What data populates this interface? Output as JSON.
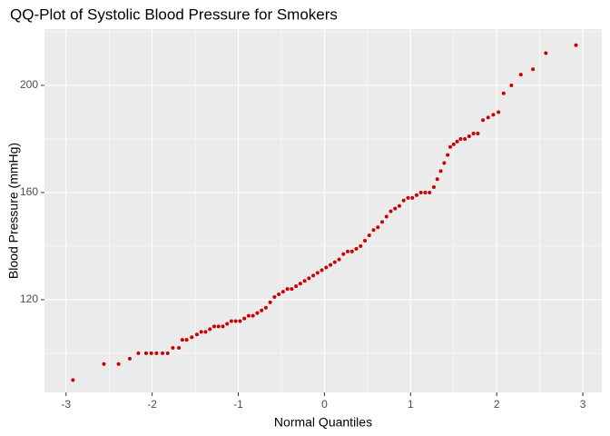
{
  "chart_data": {
    "type": "scatter",
    "title": "QQ-Plot of Systolic Blood Pressure for Smokers",
    "x_label": "Normal Quantiles",
    "y_label": "Blood Pressure (mmHg)",
    "color": "#cc0000",
    "grid": true,
    "xlim": [
      -3.25,
      3.22
    ],
    "ylim": [
      85.4,
      221
    ],
    "xticks": [
      -3,
      -2,
      -1,
      0,
      1,
      2,
      3
    ],
    "yticks": [
      120,
      160,
      200
    ],
    "x": [
      -2.92,
      -2.56,
      -2.39,
      -2.26,
      -2.16,
      -2.07,
      -2.01,
      -1.95,
      -1.88,
      -1.82,
      -1.76,
      -1.69,
      -1.65,
      -1.6,
      -1.54,
      -1.48,
      -1.43,
      -1.38,
      -1.33,
      -1.28,
      -1.23,
      -1.18,
      -1.13,
      -1.08,
      -1.03,
      -0.98,
      -0.93,
      -0.88,
      -0.83,
      -0.78,
      -0.73,
      -0.68,
      -0.63,
      -0.58,
      -0.53,
      -0.48,
      -0.43,
      -0.38,
      -0.33,
      -0.28,
      -0.23,
      -0.18,
      -0.13,
      -0.08,
      -0.03,
      0.02,
      0.07,
      0.12,
      0.17,
      0.22,
      0.27,
      0.32,
      0.37,
      0.42,
      0.47,
      0.52,
      0.57,
      0.62,
      0.67,
      0.72,
      0.77,
      0.82,
      0.87,
      0.92,
      0.97,
      1.02,
      1.07,
      1.12,
      1.17,
      1.22,
      1.27,
      1.31,
      1.35,
      1.39,
      1.43,
      1.46,
      1.5,
      1.54,
      1.58,
      1.63,
      1.68,
      1.73,
      1.78,
      1.84,
      1.9,
      1.96,
      2.02,
      2.08,
      2.17,
      2.28,
      2.42,
      2.57,
      2.92
    ],
    "values": [
      90,
      96,
      96,
      98,
      100,
      100,
      100,
      100,
      100,
      100,
      102,
      102,
      105,
      105,
      106,
      107,
      108,
      108,
      109,
      110,
      110,
      110,
      111,
      112,
      112,
      112,
      113,
      114,
      114,
      115,
      116,
      117,
      119,
      121,
      122,
      123,
      124,
      124,
      125,
      126,
      127,
      128,
      129,
      130,
      131,
      132,
      133,
      134,
      135,
      137,
      138,
      138,
      139,
      140,
      142,
      144,
      146,
      147,
      149,
      151,
      153,
      154,
      155,
      157,
      158,
      158,
      159,
      160,
      160,
      160,
      162,
      165,
      168,
      171,
      174,
      177,
      178,
      179,
      180,
      180,
      181,
      182,
      182,
      187,
      188,
      189,
      190,
      197,
      200,
      204,
      206,
      212,
      215
    ]
  }
}
